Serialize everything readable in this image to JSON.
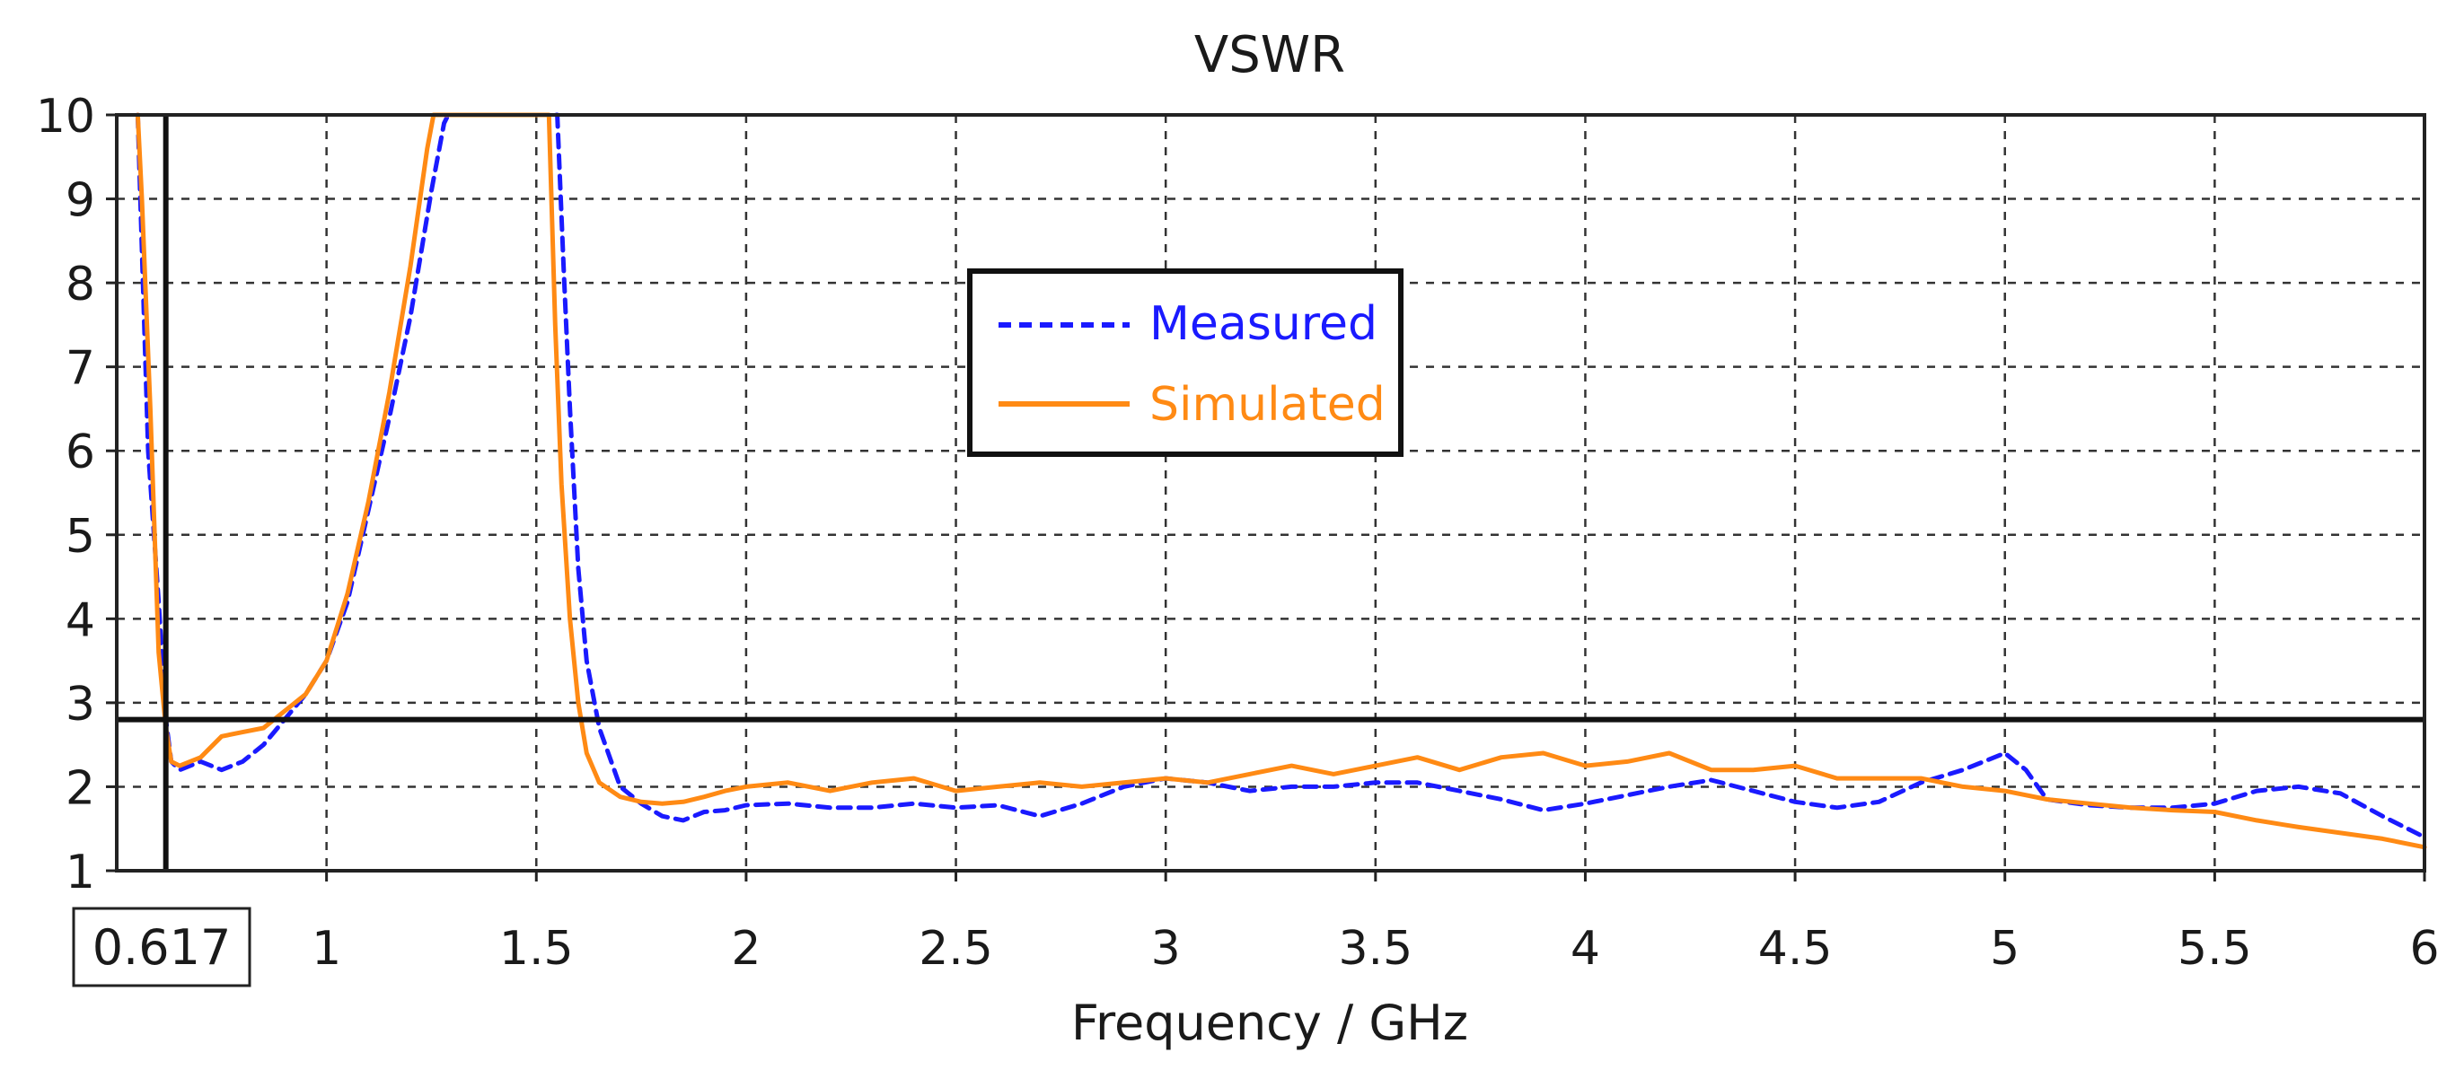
{
  "chart_data": {
    "type": "line",
    "title": "VSWR",
    "xlabel": "Frequency / GHz",
    "ylabel": "",
    "xlim": [
      0.5,
      6
    ],
    "ylim": [
      1,
      10
    ],
    "grid": true,
    "x_ticks": [
      1,
      1.5,
      2,
      2.5,
      3,
      3.5,
      4,
      4.5,
      5,
      5.5,
      6
    ],
    "x_tick_labels": [
      "1",
      "1.5",
      "2",
      "2.5",
      "3",
      "3.5",
      "4",
      "4.5",
      "5",
      "5.5",
      "6"
    ],
    "y_ticks": [
      1,
      2,
      3,
      4,
      5,
      6,
      7,
      8,
      9,
      10
    ],
    "y_tick_labels": [
      "1",
      "2",
      "3",
      "4",
      "5",
      "6",
      "7",
      "8",
      "9",
      "10"
    ],
    "marker": {
      "x": 0.617,
      "x_label": "0.617",
      "y": 2.8
    },
    "legend": {
      "position": "upper-center"
    },
    "series": [
      {
        "name": "Measured",
        "color": "#1a1aff",
        "style": "dashed",
        "x": [
          0.55,
          0.575,
          0.6,
          0.617,
          0.63,
          0.65,
          0.7,
          0.75,
          0.8,
          0.85,
          0.9,
          0.95,
          1.0,
          1.05,
          1.1,
          1.15,
          1.2,
          1.25,
          1.28,
          1.29,
          1.55,
          1.565,
          1.58,
          1.6,
          1.62,
          1.65,
          1.7,
          1.75,
          1.8,
          1.85,
          1.9,
          1.95,
          2.0,
          2.1,
          2.2,
          2.3,
          2.4,
          2.5,
          2.6,
          2.7,
          2.8,
          2.9,
          3.0,
          3.1,
          3.2,
          3.3,
          3.4,
          3.5,
          3.6,
          3.7,
          3.8,
          3.9,
          4.0,
          4.1,
          4.2,
          4.3,
          4.4,
          4.5,
          4.6,
          4.7,
          4.8,
          4.9,
          5.0,
          5.05,
          5.1,
          5.2,
          5.3,
          5.4,
          5.5,
          5.6,
          5.7,
          5.8,
          5.9,
          6.0
        ],
        "y": [
          10,
          6.0,
          4.2,
          2.8,
          2.3,
          2.2,
          2.3,
          2.2,
          2.3,
          2.5,
          2.8,
          3.1,
          3.5,
          4.2,
          5.3,
          6.4,
          7.6,
          9.1,
          9.9,
          10,
          10,
          8.2,
          6.5,
          4.6,
          3.5,
          2.7,
          2.0,
          1.8,
          1.65,
          1.6,
          1.7,
          1.72,
          1.78,
          1.8,
          1.75,
          1.75,
          1.8,
          1.75,
          1.78,
          1.65,
          1.8,
          2.0,
          2.1,
          2.05,
          1.95,
          2.0,
          2.0,
          2.05,
          2.05,
          1.95,
          1.85,
          1.72,
          1.8,
          1.9,
          2.0,
          2.08,
          1.95,
          1.82,
          1.75,
          1.82,
          2.05,
          2.2,
          2.4,
          2.2,
          1.85,
          1.78,
          1.75,
          1.75,
          1.8,
          1.95,
          2.0,
          1.92,
          1.65,
          1.4
        ]
      },
      {
        "name": "Simulated",
        "color": "#ff8a14",
        "style": "solid",
        "x": [
          0.55,
          0.56,
          0.58,
          0.6,
          0.617,
          0.63,
          0.65,
          0.7,
          0.75,
          0.8,
          0.85,
          0.9,
          0.95,
          1.0,
          1.05,
          1.1,
          1.15,
          1.2,
          1.24,
          1.255,
          1.53,
          1.545,
          1.56,
          1.58,
          1.6,
          1.62,
          1.65,
          1.7,
          1.75,
          1.8,
          1.85,
          1.9,
          1.95,
          2.0,
          2.1,
          2.2,
          2.3,
          2.4,
          2.5,
          2.6,
          2.7,
          2.8,
          2.9,
          3.0,
          3.1,
          3.2,
          3.3,
          3.4,
          3.5,
          3.6,
          3.7,
          3.8,
          3.9,
          4.0,
          4.1,
          4.2,
          4.3,
          4.4,
          4.5,
          4.6,
          4.7,
          4.8,
          4.9,
          5.0,
          5.1,
          5.2,
          5.3,
          5.4,
          5.5,
          5.6,
          5.7,
          5.8,
          5.9,
          6.0
        ],
        "y": [
          10,
          9.0,
          6.5,
          3.6,
          2.7,
          2.3,
          2.25,
          2.35,
          2.6,
          2.65,
          2.7,
          2.9,
          3.1,
          3.5,
          4.3,
          5.4,
          6.7,
          8.2,
          9.6,
          10,
          10,
          7.5,
          5.6,
          4.0,
          3.0,
          2.4,
          2.05,
          1.88,
          1.82,
          1.8,
          1.82,
          1.88,
          1.95,
          2.0,
          2.05,
          1.95,
          2.05,
          2.1,
          1.95,
          2.0,
          2.05,
          2.0,
          2.05,
          2.1,
          2.05,
          2.15,
          2.25,
          2.15,
          2.25,
          2.35,
          2.2,
          2.35,
          2.4,
          2.25,
          2.3,
          2.4,
          2.2,
          2.2,
          2.25,
          2.1,
          2.1,
          2.1,
          2.0,
          1.95,
          1.85,
          1.8,
          1.75,
          1.72,
          1.7,
          1.6,
          1.52,
          1.45,
          1.38,
          1.28
        ]
      }
    ]
  }
}
